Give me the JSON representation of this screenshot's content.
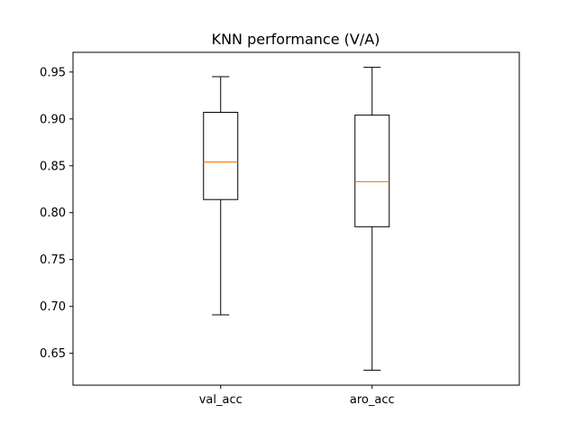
{
  "chart_data": {
    "type": "box",
    "title": "KNN performance (V/A)",
    "xlabel": "",
    "ylabel": "",
    "ylim": [
      0.616,
      0.971
    ],
    "yticks": [
      "0.65",
      "0.70",
      "0.75",
      "0.80",
      "0.85",
      "0.90",
      "0.95"
    ],
    "grid": false,
    "legend": "none",
    "categories": [
      "val_acc",
      "aro_acc"
    ],
    "boxes": [
      {
        "name": "val_acc",
        "whisker_low": 0.691,
        "q1": 0.814,
        "median": 0.854,
        "q3": 0.907,
        "whisker_high": 0.945
      },
      {
        "name": "aro_acc",
        "whisker_low": 0.632,
        "q1": 0.785,
        "median": 0.833,
        "q3": 0.904,
        "whisker_high": 0.955
      }
    ],
    "colors": {
      "box": "#000000",
      "median": "#ff7f0e",
      "whisker": "#000000"
    }
  }
}
